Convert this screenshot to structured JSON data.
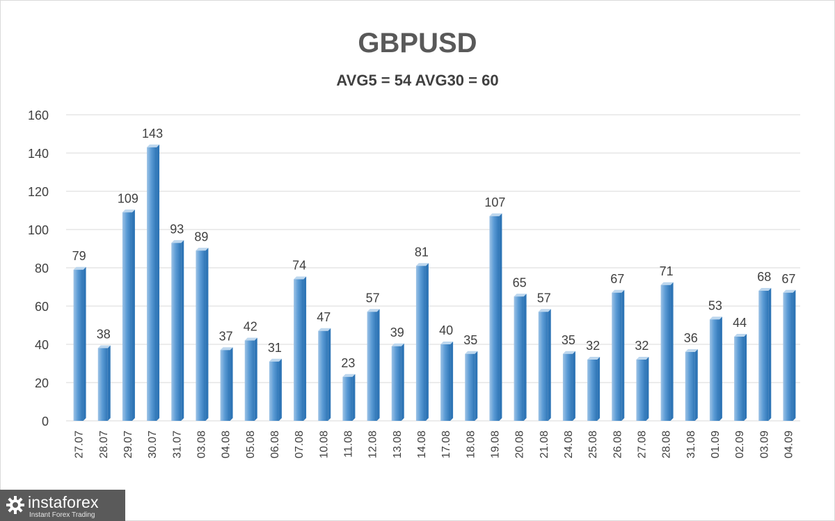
{
  "chart_data": {
    "type": "bar",
    "title": "GBPUSD",
    "subtitle": "AVG5 = 54 AVG30 = 60",
    "categories": [
      "27.07",
      "28.07",
      "29.07",
      "30.07",
      "31.07",
      "03.08",
      "04.08",
      "05.08",
      "06.08",
      "07.08",
      "10.08",
      "11.08",
      "12.08",
      "13.08",
      "14.08",
      "17.08",
      "18.08",
      "19.08",
      "20.08",
      "21.08",
      "24.08",
      "25.08",
      "26.08",
      "27.08",
      "28.08",
      "31.08",
      "01.09",
      "02.09",
      "03.09",
      "04.09"
    ],
    "values": [
      79,
      38,
      109,
      143,
      93,
      89,
      37,
      42,
      31,
      74,
      47,
      23,
      57,
      39,
      81,
      40,
      35,
      107,
      65,
      57,
      35,
      32,
      67,
      32,
      71,
      36,
      53,
      44,
      68,
      67
    ],
    "ylim": [
      0,
      160
    ],
    "yticks": [
      0,
      20,
      40,
      60,
      80,
      100,
      120,
      140,
      160
    ],
    "grid": true,
    "legend": "none",
    "colors": {
      "bar_light": "#9dc3e6",
      "bar_main": "#5b9bd5",
      "bar_dark": "#2e75b6",
      "bar_top": "#bdd7ee",
      "grid": "#d9d9d9",
      "text": "#404040"
    }
  },
  "watermark": {
    "name": "instaforex",
    "tagline": "Instant Forex Trading",
    "logo_icon": "gear-icon"
  }
}
